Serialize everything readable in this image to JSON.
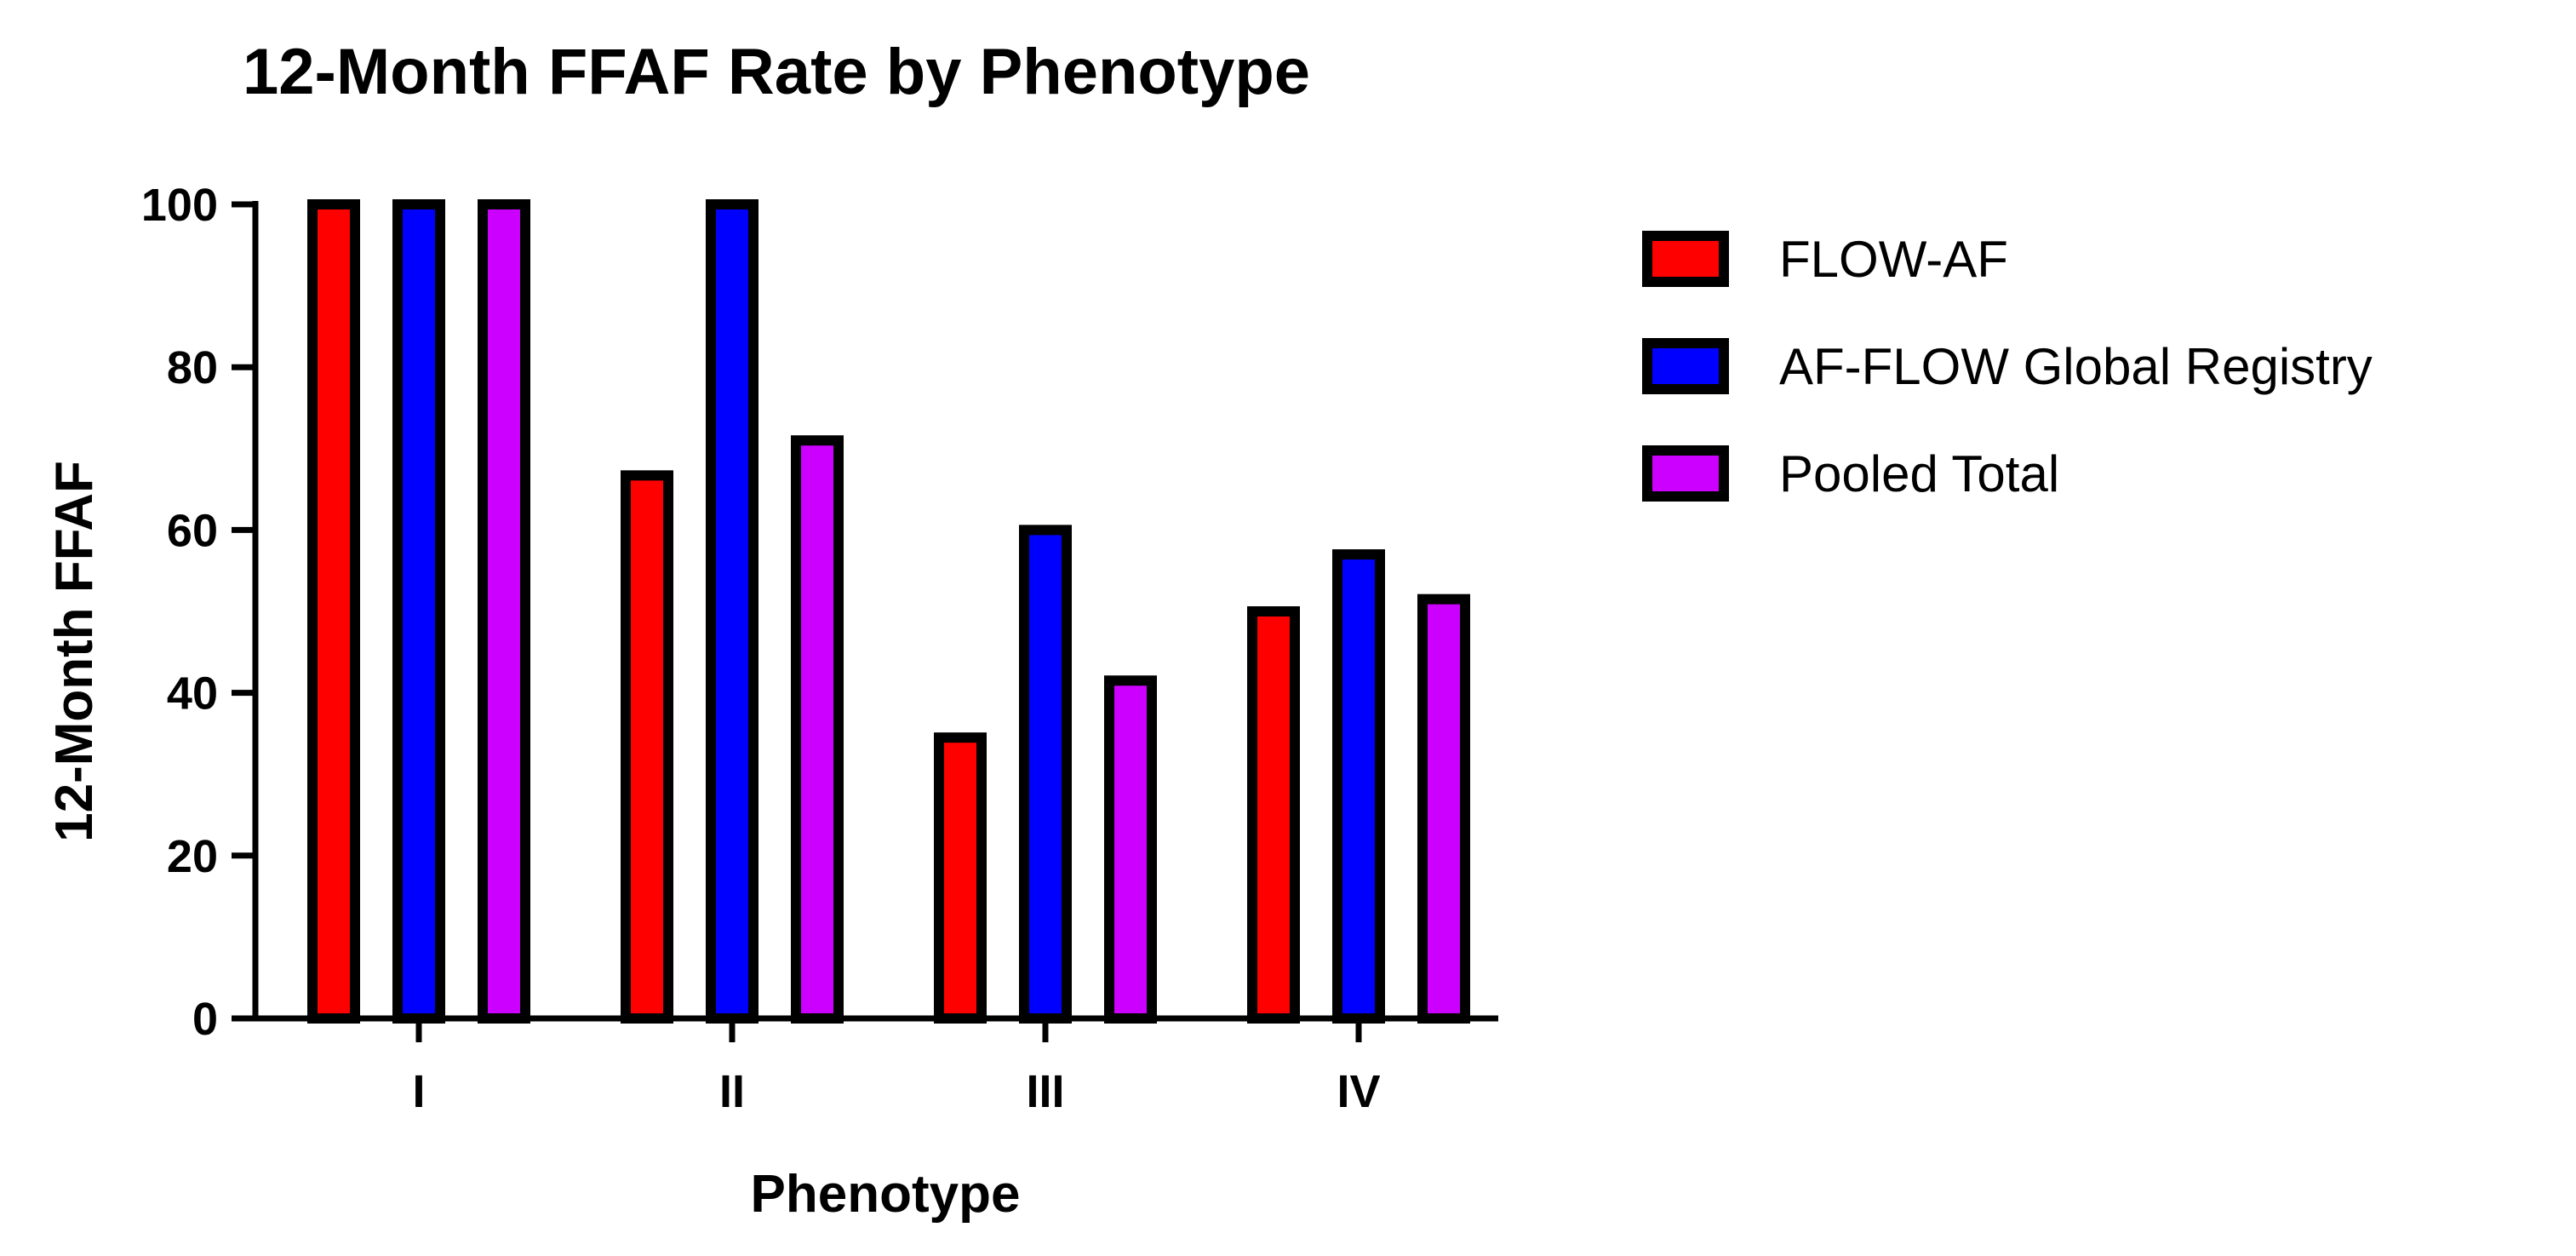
{
  "chart_data": {
    "type": "bar",
    "title": "12-Month FFAF Rate by Phenotype",
    "xlabel": "Phenotype",
    "ylabel": "12-Month FFAF",
    "categories": [
      "I",
      "II",
      "III",
      "IV"
    ],
    "series": [
      {
        "name": "FLOW-AF",
        "color": "#ff0000",
        "values": [
          100,
          66.7,
          34.5,
          50
        ]
      },
      {
        "name": "AF-FLOW Global Registry",
        "color": "#0000ff",
        "values": [
          100,
          100,
          60,
          57
        ]
      },
      {
        "name": "Pooled Total",
        "color": "#cc00ff",
        "values": [
          100,
          71,
          41.5,
          51.5
        ]
      }
    ],
    "ylim": [
      0,
      100
    ],
    "yticks": [
      0,
      20,
      40,
      60,
      80,
      100
    ],
    "grid": false,
    "legend_position": "right"
  }
}
